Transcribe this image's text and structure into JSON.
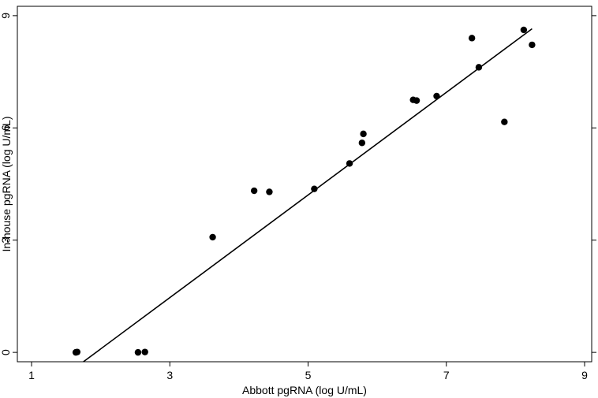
{
  "chart_data": {
    "type": "scatter",
    "title": "",
    "xlabel": "Abbott pgRNA (log U/mL)",
    "ylabel": "In-house pgRNA (log U/mL)",
    "xlim": [
      1,
      9
    ],
    "ylim": [
      -0.25,
      9.25
    ],
    "xticks": [
      1,
      3,
      5,
      7,
      9
    ],
    "yticks": [
      0,
      3,
      6,
      9
    ],
    "xtick_labels": [
      "1",
      "3",
      "5",
      "7",
      "9"
    ],
    "ytick_labels": [
      "0",
      "3",
      "6",
      "9"
    ],
    "grid": false,
    "legend": "none",
    "point_color": "#000000",
    "points": [
      {
        "x": 1.64,
        "y": 0.0
      },
      {
        "x": 1.66,
        "y": 0.01
      },
      {
        "x": 2.54,
        "y": 0.0
      },
      {
        "x": 2.64,
        "y": 0.01
      },
      {
        "x": 3.62,
        "y": 3.08
      },
      {
        "x": 4.22,
        "y": 4.32
      },
      {
        "x": 4.44,
        "y": 4.29
      },
      {
        "x": 5.09,
        "y": 4.37
      },
      {
        "x": 5.6,
        "y": 5.05
      },
      {
        "x": 5.78,
        "y": 5.6
      },
      {
        "x": 5.8,
        "y": 5.84
      },
      {
        "x": 6.52,
        "y": 6.75
      },
      {
        "x": 6.57,
        "y": 6.73
      },
      {
        "x": 6.86,
        "y": 6.85
      },
      {
        "x": 7.37,
        "y": 8.4
      },
      {
        "x": 7.47,
        "y": 7.62
      },
      {
        "x": 7.84,
        "y": 6.16
      },
      {
        "x": 8.12,
        "y": 8.62
      },
      {
        "x": 8.24,
        "y": 8.22
      }
    ],
    "fit_line": {
      "x": [
        1.75,
        8.24
      ],
      "y": [
        -0.25,
        8.65
      ]
    }
  }
}
